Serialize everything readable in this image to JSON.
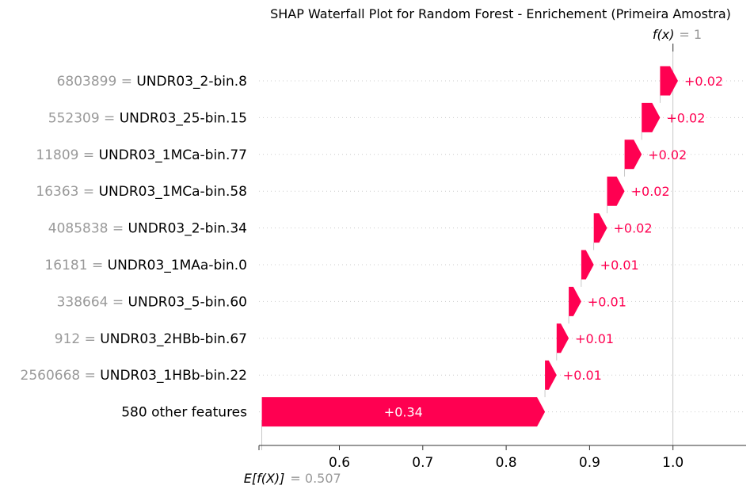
{
  "chart_data": {
    "type": "waterfall",
    "title": "SHAP Waterfall Plot for Random Forest - Enrichement (Primeira Amostra)",
    "base_value": 0.507,
    "base_label": "E[f(X)]",
    "base_value_text": "= 0.507",
    "final_value": 1.0,
    "final_label": "f(x)",
    "final_value_text": "= 1",
    "xticks": [
      0.6,
      0.7,
      0.8,
      0.9,
      1.0
    ],
    "xtick_labels": [
      "0.6",
      "0.7",
      "0.8",
      "0.9",
      "1.0"
    ],
    "xlim": [
      0.505,
      1.085
    ],
    "positive_color": "#ff0051",
    "features": [
      {
        "value": "6803899",
        "name": "UNDR03_2-bin.8",
        "shap": 0.0215,
        "shap_label": "+0.02"
      },
      {
        "value": "552309",
        "name": "UNDR03_25-bin.15",
        "shap": 0.022,
        "shap_label": "+0.02"
      },
      {
        "value": "11809",
        "name": "UNDR03_1MCa-bin.77",
        "shap": 0.0205,
        "shap_label": "+0.02"
      },
      {
        "value": "16363",
        "name": "UNDR03_1MCa-bin.58",
        "shap": 0.021,
        "shap_label": "+0.02"
      },
      {
        "value": "4085838",
        "name": "UNDR03_2-bin.34",
        "shap": 0.016,
        "shap_label": "+0.02"
      },
      {
        "value": "16181",
        "name": "UNDR03_1MAa-bin.0",
        "shap": 0.015,
        "shap_label": "+0.01"
      },
      {
        "value": "338664",
        "name": "UNDR03_5-bin.60",
        "shap": 0.015,
        "shap_label": "+0.01"
      },
      {
        "value": "912",
        "name": "UNDR03_2HBb-bin.67",
        "shap": 0.0145,
        "shap_label": "+0.01"
      },
      {
        "value": "2560668",
        "name": "UNDR03_1HBb-bin.22",
        "shap": 0.014,
        "shap_label": "+0.01"
      },
      {
        "value": "",
        "name": "580 other features",
        "shap": 0.3395,
        "shap_label": "+0.34"
      }
    ]
  }
}
